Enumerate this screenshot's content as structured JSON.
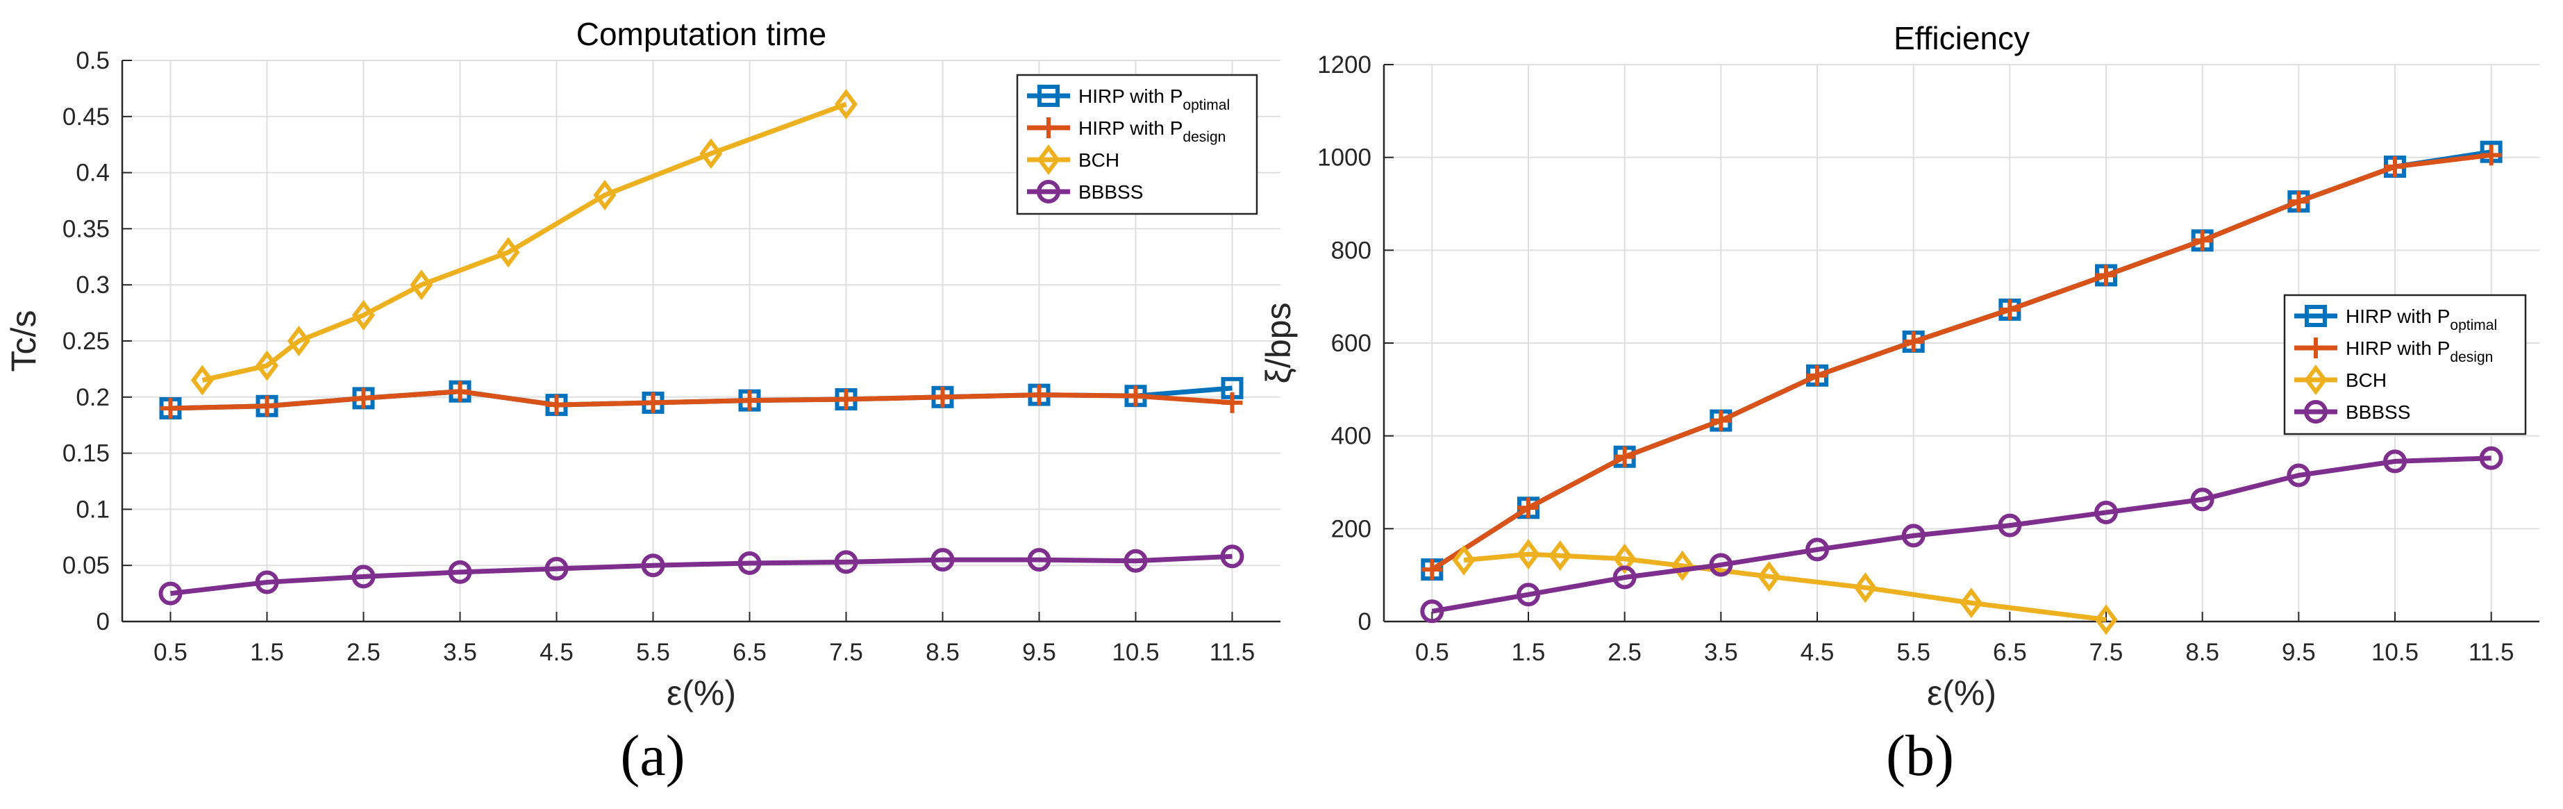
{
  "panel_labels": [
    "(a)",
    "(b)"
  ],
  "chart_data": [
    {
      "type": "line",
      "title": "Computation time",
      "xlabel": "ε(%)",
      "ylabel": "Tc/s",
      "x_ticks": [
        "0.5",
        "1.5",
        "2.5",
        "3.5",
        "4.5",
        "5.5",
        "6.5",
        "7.5",
        "8.5",
        "9.5",
        "10.5",
        "11.5"
      ],
      "y_ticks": [
        "0",
        "0.05",
        "0.1",
        "0.15",
        "0.2",
        "0.25",
        "0.3",
        "0.35",
        "0.4",
        "0.45",
        "0.5"
      ],
      "xlim": [
        0,
        12
      ],
      "ylim": [
        0,
        0.5
      ],
      "grid": true,
      "legend_position": "top-right",
      "series": [
        {
          "name": "HIRP with P",
          "subscript": "optimal",
          "color": "#0072BD",
          "marker": "square",
          "x": [
            0.5,
            1.5,
            2.5,
            3.5,
            4.5,
            5.5,
            6.5,
            7.5,
            8.5,
            9.5,
            10.5,
            11.5
          ],
          "y": [
            0.19,
            0.192,
            0.199,
            0.205,
            0.193,
            0.195,
            0.197,
            0.198,
            0.2,
            0.202,
            0.201,
            0.208
          ]
        },
        {
          "name": "HIRP with P",
          "subscript": "design",
          "color": "#D95319",
          "marker": "plus",
          "x": [
            0.5,
            1.5,
            2.5,
            3.5,
            4.5,
            5.5,
            6.5,
            7.5,
            8.5,
            9.5,
            10.5,
            11.5
          ],
          "y": [
            0.19,
            0.192,
            0.199,
            0.205,
            0.193,
            0.195,
            0.197,
            0.198,
            0.2,
            0.202,
            0.201,
            0.195
          ]
        },
        {
          "name": "BCH",
          "subscript": "",
          "color": "#EDB120",
          "marker": "diamond",
          "x": [
            0.83,
            1.5,
            1.83,
            2.5,
            3.1,
            4.0,
            5.0,
            6.1,
            7.5
          ],
          "y": [
            0.215,
            0.228,
            0.25,
            0.273,
            0.3,
            0.329,
            0.38,
            0.417,
            0.461
          ]
        },
        {
          "name": "BBBSS",
          "subscript": "",
          "color": "#7E2F8E",
          "marker": "circle",
          "x": [
            0.5,
            1.5,
            2.5,
            3.5,
            4.5,
            5.5,
            6.5,
            7.5,
            8.5,
            9.5,
            10.5,
            11.5
          ],
          "y": [
            0.025,
            0.035,
            0.04,
            0.044,
            0.047,
            0.05,
            0.052,
            0.053,
            0.055,
            0.055,
            0.054,
            0.058
          ]
        }
      ]
    },
    {
      "type": "line",
      "title": "Efficiency",
      "xlabel": "ε(%)",
      "ylabel": "ξ/bps",
      "x_ticks": [
        "0.5",
        "1.5",
        "2.5",
        "3.5",
        "4.5",
        "5.5",
        "6.5",
        "7.5",
        "8.5",
        "9.5",
        "10.5",
        "11.5"
      ],
      "y_ticks": [
        "0",
        "200",
        "400",
        "600",
        "800",
        "1000",
        "1200"
      ],
      "xlim": [
        0,
        12
      ],
      "ylim": [
        0,
        1200
      ],
      "grid": true,
      "legend_position": "right",
      "series": [
        {
          "name": "HIRP with P",
          "subscript": "optimal",
          "color": "#0072BD",
          "marker": "square",
          "x": [
            0.5,
            1.5,
            2.5,
            3.5,
            4.5,
            5.5,
            6.5,
            7.5,
            8.5,
            9.5,
            10.5,
            11.5
          ],
          "y": [
            112,
            245,
            355,
            433,
            530,
            603,
            672,
            746,
            821,
            905,
            980,
            1012
          ]
        },
        {
          "name": "HIRP with P",
          "subscript": "design",
          "color": "#D95319",
          "marker": "plus",
          "x": [
            0.5,
            1.5,
            2.5,
            3.5,
            4.5,
            5.5,
            6.5,
            7.5,
            8.5,
            9.5,
            10.5,
            11.5
          ],
          "y": [
            112,
            245,
            355,
            433,
            530,
            603,
            672,
            746,
            821,
            905,
            980,
            1005
          ]
        },
        {
          "name": "BCH",
          "subscript": "",
          "color": "#EDB120",
          "marker": "diamond",
          "x": [
            0.83,
            1.5,
            1.83,
            2.5,
            3.1,
            4.0,
            5.0,
            6.1,
            7.5
          ],
          "y": [
            132,
            145,
            142,
            135,
            120,
            97,
            73,
            40,
            4
          ]
        },
        {
          "name": "BBBSS",
          "subscript": "",
          "color": "#7E2F8E",
          "marker": "circle",
          "x": [
            0.5,
            1.5,
            2.5,
            3.5,
            4.5,
            5.5,
            6.5,
            7.5,
            8.5,
            9.5,
            10.5,
            11.5
          ],
          "y": [
            22,
            58,
            95,
            122,
            155,
            185,
            207,
            235,
            263,
            315,
            345,
            352
          ]
        }
      ]
    }
  ]
}
